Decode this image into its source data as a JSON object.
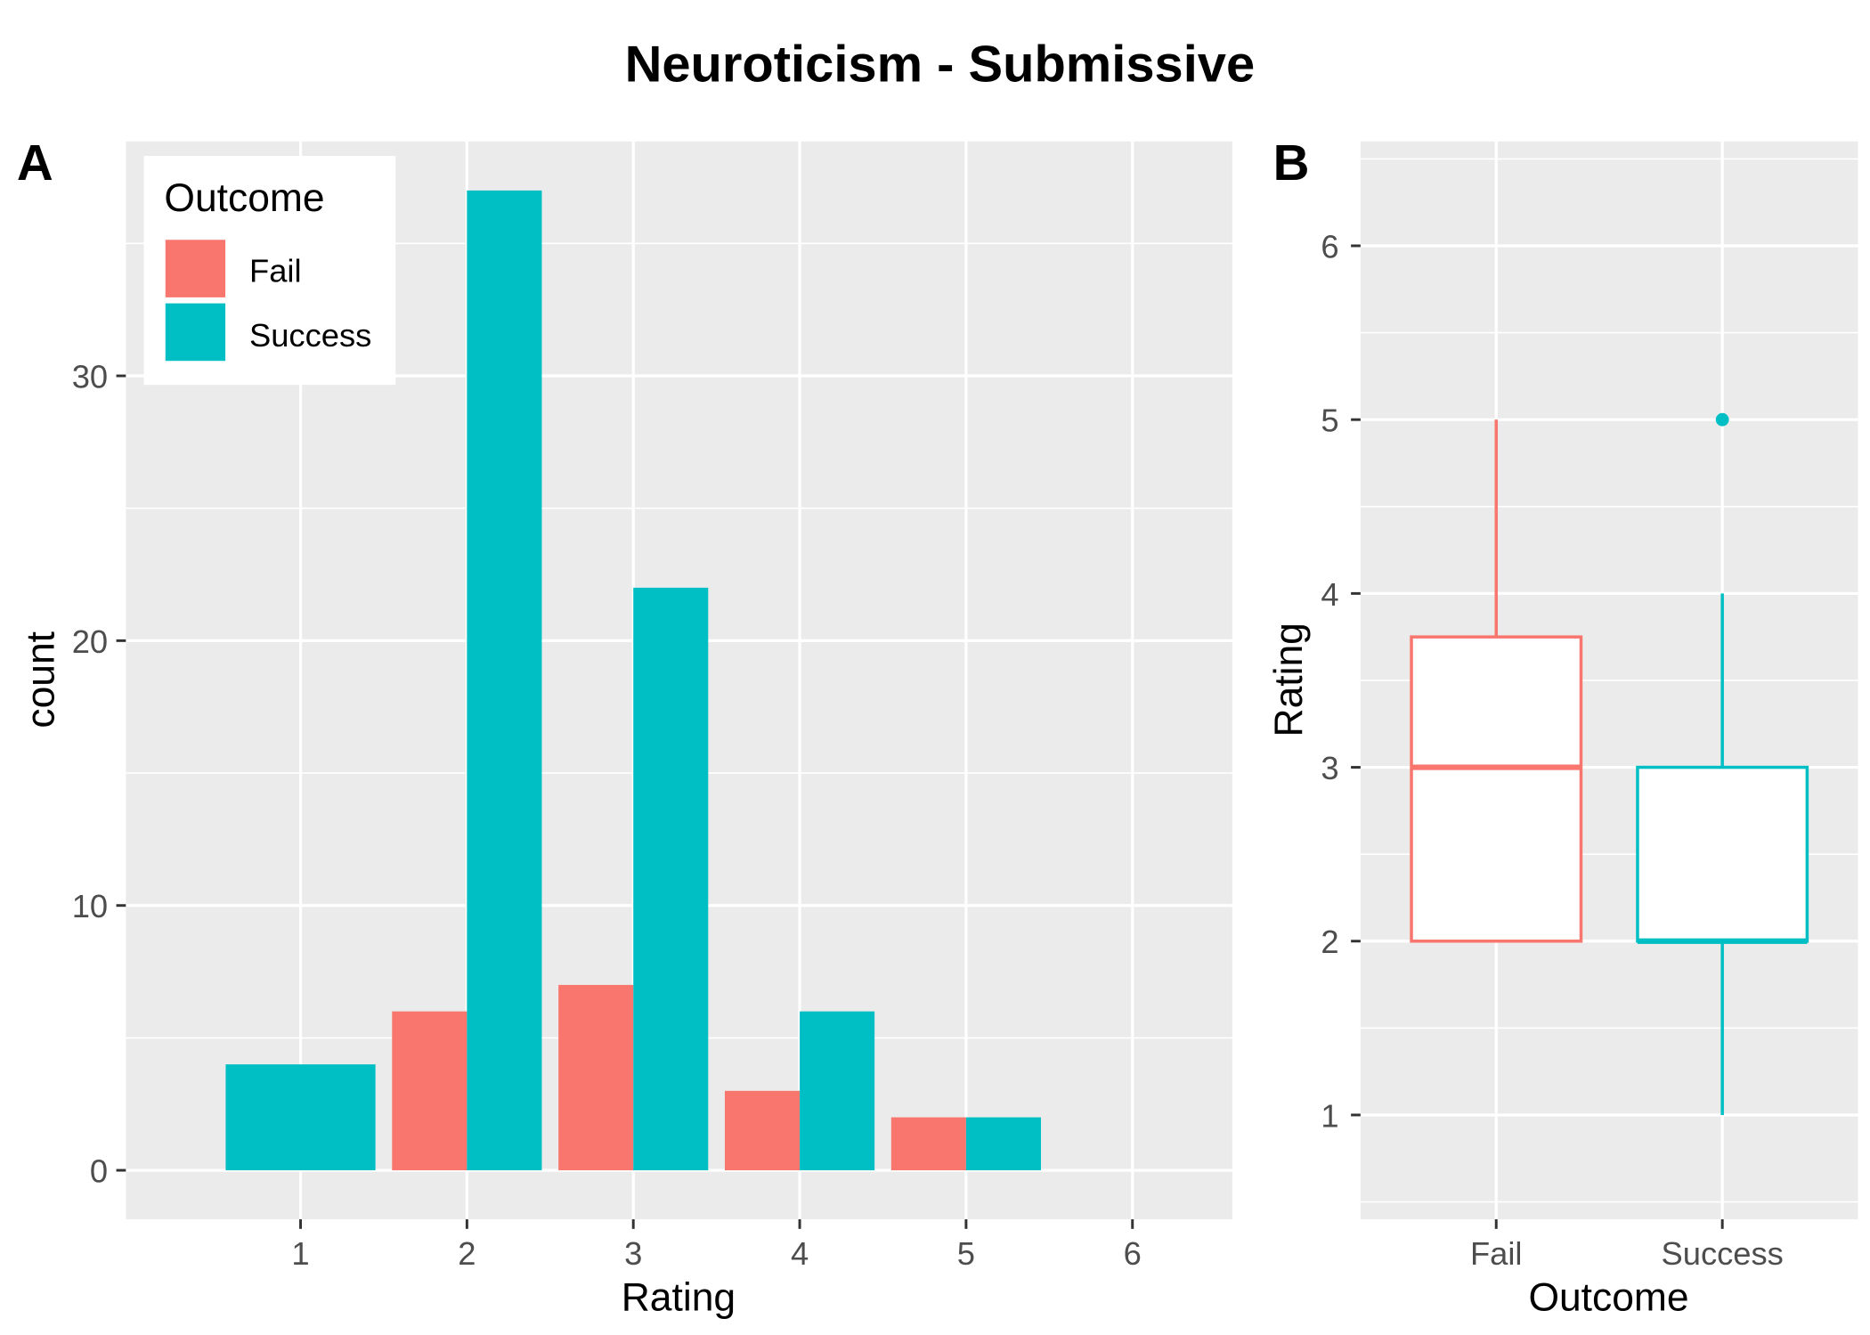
{
  "title": "Neuroticism - Submissive",
  "colors": {
    "panel_background": "#EBEBEB",
    "grid": "#FFFFFF",
    "axis_text": "#4D4D4D",
    "box_fill": "#FFFFFF",
    "legend_background": "#FFFFFF"
  },
  "chart_data": [
    {
      "panel_label": "A",
      "type": "bar",
      "x": [
        1,
        2,
        3,
        4,
        5
      ],
      "series": [
        {
          "name": "Fail",
          "color": "#F8766D",
          "values": [
            null,
            6,
            7,
            3,
            2
          ]
        },
        {
          "name": "Success",
          "color": "#00BFC4",
          "values": [
            4,
            37,
            22,
            6,
            2
          ]
        }
      ],
      "xlabel": "Rating",
      "ylabel": "count",
      "xticks": [
        1,
        2,
        3,
        4,
        5,
        6
      ],
      "yticks": [
        0,
        10,
        20,
        30
      ],
      "xlim": [
        -0.05,
        6.6
      ],
      "ylim": [
        -1.85,
        38.85
      ],
      "grid": true,
      "legend": {
        "title": "Outcome",
        "position": "top-left"
      }
    },
    {
      "panel_label": "B",
      "type": "box",
      "categories": [
        "Fail",
        "Success"
      ],
      "boxes": [
        {
          "name": "Fail",
          "color": "#F8766D",
          "lower_whisker": 2,
          "q1": 2,
          "median": 3,
          "q3": 3.75,
          "upper_whisker": 5,
          "outliers": []
        },
        {
          "name": "Success",
          "color": "#00BFC4",
          "lower_whisker": 1,
          "q1": 2,
          "median": 2,
          "q3": 3,
          "upper_whisker": 4,
          "outliers": [
            5
          ]
        }
      ],
      "xlabel": "Outcome",
      "ylabel": "Rating",
      "yticks": [
        1,
        2,
        3,
        4,
        5,
        6
      ],
      "ylim": [
        0.4,
        6.6
      ],
      "grid": true
    }
  ]
}
